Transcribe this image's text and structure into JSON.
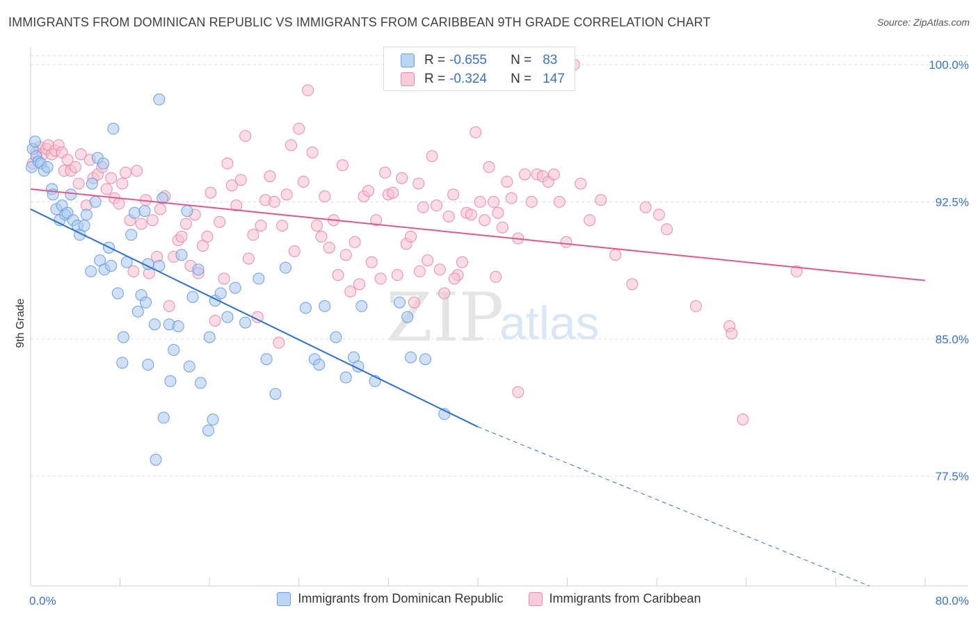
{
  "title": "IMMIGRANTS FROM DOMINICAN REPUBLIC VS IMMIGRANTS FROM CARIBBEAN 9TH GRADE CORRELATION CHART",
  "source": "Source: ZipAtlas.com",
  "watermark": {
    "zip": "ZIP",
    "atlas": "atlas"
  },
  "colors": {
    "blue_fill": "#a9c8f0",
    "blue_stroke": "#6a9edf",
    "blue_line": "#2b6fd1",
    "pink_fill": "#f6bfd0",
    "pink_stroke": "#ea8aa8",
    "pink_line": "#e0588a",
    "tick_label": "#3a72c8",
    "grid": "#dcdcdc"
  },
  "legend": {
    "rows": [
      {
        "r_label": "R =",
        "r_value": "-0.655",
        "n_label": "N =",
        "n_value": "83"
      },
      {
        "r_label": "R =",
        "r_value": "-0.324",
        "n_label": "N =",
        "n_value": "147"
      }
    ],
    "bottom": [
      "Immigrants from Dominican Republic",
      "Immigrants from Caribbean"
    ]
  },
  "chart_data": {
    "type": "scatter",
    "title": "IMMIGRANTS FROM DOMINICAN REPUBLIC VS IMMIGRANTS FROM CARIBBEAN 9TH GRADE CORRELATION CHART",
    "xlabel": "",
    "ylabel": "9th Grade",
    "xlim": [
      0,
      80
    ],
    "ylim": [
      71.5,
      100.8
    ],
    "x_tick_labels": [
      "0.0%",
      "80.0%"
    ],
    "x_ticks": [
      0,
      8,
      16,
      24,
      32,
      40,
      48,
      56,
      64,
      72,
      80
    ],
    "y_ticks": [
      77.5,
      85.0,
      92.5,
      100.0
    ],
    "y_tick_labels": [
      "77.5%",
      "85.0%",
      "92.5%",
      "100.0%"
    ],
    "grid": true,
    "legend_position": "top-center",
    "series": [
      {
        "name": "Immigrants from Dominican Republic",
        "r": -0.655,
        "n": 83,
        "trend": {
          "x0": 0,
          "y0": 92.1,
          "x1": 40,
          "y1": 80.2,
          "dashed_to_x": 75,
          "dashed_to_y": 71.5
        },
        "points": [
          [
            0.1,
            94.4
          ],
          [
            0.2,
            95.4
          ],
          [
            0.4,
            95.8
          ],
          [
            0.5,
            95.0
          ],
          [
            0.7,
            94.7
          ],
          [
            0.9,
            94.6
          ],
          [
            1.2,
            94.2
          ],
          [
            1.5,
            94.4
          ],
          [
            1.9,
            93.2
          ],
          [
            2.0,
            92.9
          ],
          [
            2.3,
            92.1
          ],
          [
            2.6,
            91.5
          ],
          [
            2.8,
            92.3
          ],
          [
            3.1,
            91.8
          ],
          [
            3.3,
            91.9
          ],
          [
            3.6,
            92.9
          ],
          [
            3.8,
            91.5
          ],
          [
            4.2,
            91.2
          ],
          [
            4.4,
            90.7
          ],
          [
            4.8,
            91.2
          ],
          [
            5.0,
            91.8
          ],
          [
            5.5,
            93.5
          ],
          [
            5.8,
            92.5
          ],
          [
            6.0,
            94.9
          ],
          [
            6.5,
            94.6
          ],
          [
            5.4,
            88.7
          ],
          [
            6.2,
            89.3
          ],
          [
            6.6,
            88.8
          ],
          [
            7.0,
            90.0
          ],
          [
            7.2,
            89.0
          ],
          [
            7.8,
            87.5
          ],
          [
            8.3,
            85.1
          ],
          [
            8.6,
            89.2
          ],
          [
            9.0,
            90.7
          ],
          [
            9.3,
            91.9
          ],
          [
            9.6,
            86.5
          ],
          [
            9.9,
            87.4
          ],
          [
            10.3,
            87.0
          ],
          [
            10.5,
            89.1
          ],
          [
            11.1,
            85.8
          ],
          [
            11.5,
            89.0
          ],
          [
            7.4,
            96.5
          ],
          [
            10.2,
            92.0
          ],
          [
            11.5,
            98.1
          ],
          [
            11.8,
            92.7
          ],
          [
            12.4,
            85.8
          ],
          [
            12.8,
            84.4
          ],
          [
            13.2,
            85.7
          ],
          [
            13.5,
            89.6
          ],
          [
            14.0,
            92.0
          ],
          [
            14.2,
            83.5
          ],
          [
            14.5,
            87.3
          ],
          [
            15.0,
            88.8
          ],
          [
            15.2,
            82.6
          ],
          [
            16.0,
            85.1
          ],
          [
            16.5,
            87.1
          ],
          [
            17.0,
            87.5
          ],
          [
            17.6,
            86.2
          ],
          [
            18.3,
            87.8
          ],
          [
            19.2,
            85.9
          ],
          [
            20.4,
            88.3
          ],
          [
            21.1,
            83.9
          ],
          [
            21.9,
            82.0
          ],
          [
            22.8,
            88.9
          ],
          [
            24.6,
            86.7
          ],
          [
            25.4,
            83.9
          ],
          [
            25.8,
            83.6
          ],
          [
            26.3,
            86.8
          ],
          [
            27.3,
            85.1
          ],
          [
            28.2,
            82.9
          ],
          [
            28.9,
            84.0
          ],
          [
            29.3,
            83.5
          ],
          [
            29.6,
            86.8
          ],
          [
            30.8,
            82.7
          ],
          [
            33.0,
            87.0
          ],
          [
            33.7,
            86.2
          ],
          [
            34.0,
            84.0
          ],
          [
            35.3,
            83.9
          ],
          [
            37.0,
            80.9
          ],
          [
            8.2,
            83.7
          ],
          [
            10.5,
            83.6
          ],
          [
            12.5,
            82.7
          ],
          [
            11.9,
            80.7
          ],
          [
            16.3,
            80.6
          ],
          [
            15.9,
            80.0
          ],
          [
            11.2,
            78.4
          ]
        ]
      },
      {
        "name": "Immigrants from Caribbean",
        "r": -0.324,
        "n": 147,
        "trend": {
          "x0": 0,
          "y0": 93.2,
          "x1": 80,
          "y1": 88.2
        },
        "points": [
          [
            0.2,
            94.6
          ],
          [
            0.5,
            95.2
          ],
          [
            0.8,
            95.5
          ],
          [
            1.1,
            95.1
          ],
          [
            1.4,
            95.4
          ],
          [
            1.6,
            95.6
          ],
          [
            1.9,
            95.1
          ],
          [
            2.2,
            95.3
          ],
          [
            2.5,
            95.6
          ],
          [
            2.8,
            95.2
          ],
          [
            3.0,
            94.2
          ],
          [
            3.3,
            94.8
          ],
          [
            3.6,
            94.2
          ],
          [
            4.0,
            94.4
          ],
          [
            4.3,
            93.5
          ],
          [
            4.5,
            95.1
          ],
          [
            5.0,
            92.3
          ],
          [
            5.3,
            94.8
          ],
          [
            5.6,
            93.8
          ],
          [
            6.0,
            94.0
          ],
          [
            6.4,
            94.4
          ],
          [
            6.8,
            93.2
          ],
          [
            7.2,
            93.8
          ],
          [
            7.5,
            92.7
          ],
          [
            7.9,
            92.4
          ],
          [
            8.2,
            93.5
          ],
          [
            8.5,
            94.1
          ],
          [
            8.9,
            91.5
          ],
          [
            9.2,
            88.7
          ],
          [
            9.5,
            94.2
          ],
          [
            9.9,
            91.3
          ],
          [
            10.3,
            92.6
          ],
          [
            10.6,
            88.6
          ],
          [
            10.9,
            91.5
          ],
          [
            11.3,
            89.5
          ],
          [
            11.6,
            92.1
          ],
          [
            12.0,
            92.8
          ],
          [
            12.4,
            86.8
          ],
          [
            12.8,
            89.5
          ],
          [
            13.2,
            90.4
          ],
          [
            13.5,
            90.6
          ],
          [
            13.9,
            91.3
          ],
          [
            14.3,
            89.0
          ],
          [
            14.7,
            91.8
          ],
          [
            15.0,
            88.6
          ],
          [
            15.4,
            90.1
          ],
          [
            15.8,
            90.6
          ],
          [
            16.1,
            93.0
          ],
          [
            16.5,
            86.0
          ],
          [
            16.9,
            91.4
          ],
          [
            17.3,
            88.3
          ],
          [
            17.6,
            94.6
          ],
          [
            18.0,
            93.4
          ],
          [
            18.4,
            92.3
          ],
          [
            18.8,
            93.7
          ],
          [
            19.2,
            96.1
          ],
          [
            19.5,
            89.4
          ],
          [
            19.9,
            90.7
          ],
          [
            20.3,
            86.2
          ],
          [
            20.6,
            91.2
          ],
          [
            21.0,
            92.6
          ],
          [
            21.4,
            93.9
          ],
          [
            21.8,
            92.5
          ],
          [
            22.2,
            84.8
          ],
          [
            22.5,
            91.2
          ],
          [
            22.9,
            92.9
          ],
          [
            23.3,
            95.6
          ],
          [
            23.6,
            89.8
          ],
          [
            24.0,
            96.5
          ],
          [
            24.4,
            93.6
          ],
          [
            24.8,
            98.6
          ],
          [
            25.2,
            95.2
          ],
          [
            25.6,
            91.2
          ],
          [
            26.0,
            90.6
          ],
          [
            26.3,
            92.8
          ],
          [
            26.7,
            90.0
          ],
          [
            27.1,
            91.5
          ],
          [
            27.5,
            88.5
          ],
          [
            27.9,
            94.5
          ],
          [
            28.2,
            89.6
          ],
          [
            28.6,
            87.6
          ],
          [
            29.0,
            90.3
          ],
          [
            29.4,
            88.0
          ],
          [
            29.8,
            92.8
          ],
          [
            30.2,
            93.1
          ],
          [
            30.5,
            89.2
          ],
          [
            30.9,
            91.5
          ],
          [
            31.3,
            88.3
          ],
          [
            31.7,
            94.1
          ],
          [
            32.0,
            92.9
          ],
          [
            32.4,
            93.0
          ],
          [
            32.8,
            88.5
          ],
          [
            33.2,
            93.8
          ],
          [
            33.6,
            90.2
          ],
          [
            34.0,
            90.6
          ],
          [
            34.3,
            87.0
          ],
          [
            34.7,
            93.5
          ],
          [
            35.1,
            92.2
          ],
          [
            35.5,
            89.3
          ],
          [
            35.9,
            95.0
          ],
          [
            36.3,
            92.3
          ],
          [
            36.6,
            88.8
          ],
          [
            37.0,
            87.5
          ],
          [
            37.4,
            91.7
          ],
          [
            37.8,
            92.9
          ],
          [
            38.2,
            88.5
          ],
          [
            38.6,
            89.2
          ],
          [
            39.0,
            91.9
          ],
          [
            39.4,
            91.8
          ],
          [
            39.8,
            96.3
          ],
          [
            40.2,
            92.5
          ],
          [
            40.6,
            91.5
          ],
          [
            41.0,
            94.4
          ],
          [
            41.4,
            92.5
          ],
          [
            41.8,
            91.9
          ],
          [
            42.2,
            91.1
          ],
          [
            42.6,
            93.6
          ],
          [
            43.0,
            92.7
          ],
          [
            43.6,
            90.5
          ],
          [
            44.2,
            94.0
          ],
          [
            44.8,
            92.5
          ],
          [
            45.3,
            94.0
          ],
          [
            45.8,
            93.9
          ],
          [
            46.3,
            93.6
          ],
          [
            46.8,
            94.0
          ],
          [
            47.3,
            92.5
          ],
          [
            47.9,
            90.3
          ],
          [
            48.6,
            100.0
          ],
          [
            49.2,
            93.5
          ],
          [
            50.0,
            91.5
          ],
          [
            51.0,
            92.6
          ],
          [
            52.3,
            89.6
          ],
          [
            53.8,
            88.0
          ],
          [
            55.0,
            92.2
          ],
          [
            56.2,
            91.8
          ],
          [
            56.9,
            91.0
          ],
          [
            59.5,
            86.8
          ],
          [
            62.5,
            85.7
          ],
          [
            62.7,
            85.3
          ],
          [
            68.5,
            88.7
          ],
          [
            34.8,
            88.7
          ],
          [
            41.6,
            88.4
          ],
          [
            37.9,
            88.3
          ],
          [
            43.6,
            82.1
          ],
          [
            63.7,
            80.6
          ]
        ]
      }
    ]
  }
}
